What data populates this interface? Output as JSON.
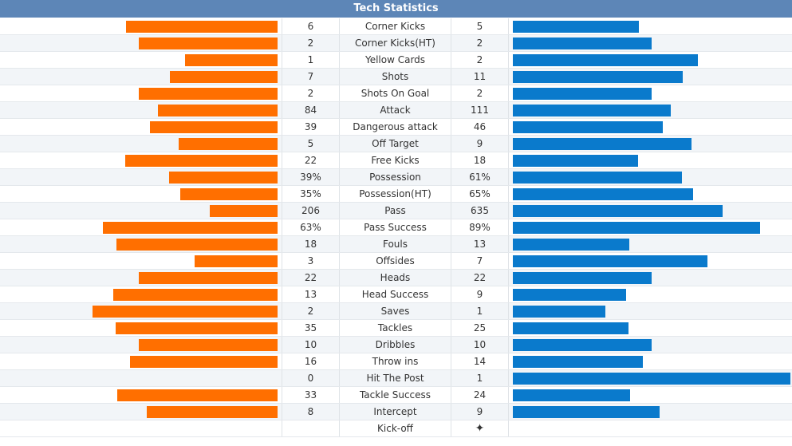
{
  "title": "Tech Statistics",
  "colors": {
    "header": "#5d86b7",
    "home_bar": "#ff6f00",
    "away_bar": "#0a7acc"
  },
  "stats": [
    {
      "name": "Corner Kicks",
      "home": "6",
      "away": "5",
      "home_share": 0.545,
      "away_share": 0.455
    },
    {
      "name": "Corner Kicks(HT)",
      "home": "2",
      "away": "2",
      "home_share": 0.5,
      "away_share": 0.5
    },
    {
      "name": "Yellow Cards",
      "home": "1",
      "away": "2",
      "home_share": 0.333,
      "away_share": 0.667
    },
    {
      "name": "Shots",
      "home": "7",
      "away": "11",
      "home_share": 0.389,
      "away_share": 0.611
    },
    {
      "name": "Shots On Goal",
      "home": "2",
      "away": "2",
      "home_share": 0.5,
      "away_share": 0.5
    },
    {
      "name": "Attack",
      "home": "84",
      "away": "111",
      "home_share": 0.431,
      "away_share": 0.569
    },
    {
      "name": "Dangerous attack",
      "home": "39",
      "away": "46",
      "home_share": 0.459,
      "away_share": 0.541
    },
    {
      "name": "Off Target",
      "home": "5",
      "away": "9",
      "home_share": 0.357,
      "away_share": 0.643
    },
    {
      "name": "Free Kicks",
      "home": "22",
      "away": "18",
      "home_share": 0.55,
      "away_share": 0.45
    },
    {
      "name": "Possession",
      "home": "39%",
      "away": "61%",
      "home_share": 0.39,
      "away_share": 0.61
    },
    {
      "name": "Possession(HT)",
      "home": "35%",
      "away": "65%",
      "home_share": 0.35,
      "away_share": 0.65
    },
    {
      "name": "Pass",
      "home": "206",
      "away": "635",
      "home_share": 0.245,
      "away_share": 0.755
    },
    {
      "name": "Pass Success",
      "home": "63%",
      "away": "89%",
      "home_share": 0.63,
      "away_share": 0.89
    },
    {
      "name": "Fouls",
      "home": "18",
      "away": "13",
      "home_share": 0.581,
      "away_share": 0.419
    },
    {
      "name": "Offsides",
      "home": "3",
      "away": "7",
      "home_share": 0.3,
      "away_share": 0.7
    },
    {
      "name": "Heads",
      "home": "22",
      "away": "22",
      "home_share": 0.5,
      "away_share": 0.5
    },
    {
      "name": "Head Success",
      "home": "13",
      "away": "9",
      "home_share": 0.591,
      "away_share": 0.409
    },
    {
      "name": "Saves",
      "home": "2",
      "away": "1",
      "home_share": 0.667,
      "away_share": 0.333
    },
    {
      "name": "Tackles",
      "home": "35",
      "away": "25",
      "home_share": 0.583,
      "away_share": 0.417
    },
    {
      "name": "Dribbles",
      "home": "10",
      "away": "10",
      "home_share": 0.5,
      "away_share": 0.5
    },
    {
      "name": "Throw ins",
      "home": "16",
      "away": "14",
      "home_share": 0.533,
      "away_share": 0.467
    },
    {
      "name": "Hit The Post",
      "home": "0",
      "away": "1",
      "home_share": 0.0,
      "away_share": 1.0
    },
    {
      "name": "Tackle Success",
      "home": "33",
      "away": "24",
      "home_share": 0.579,
      "away_share": 0.421
    },
    {
      "name": "Intercept",
      "home": "8",
      "away": "9",
      "home_share": 0.471,
      "away_share": 0.529
    }
  ],
  "kickoff": {
    "name": "Kick-off",
    "home": "",
    "away_icon": "kickoff-ball-icon",
    "away_glyph": "✦"
  }
}
